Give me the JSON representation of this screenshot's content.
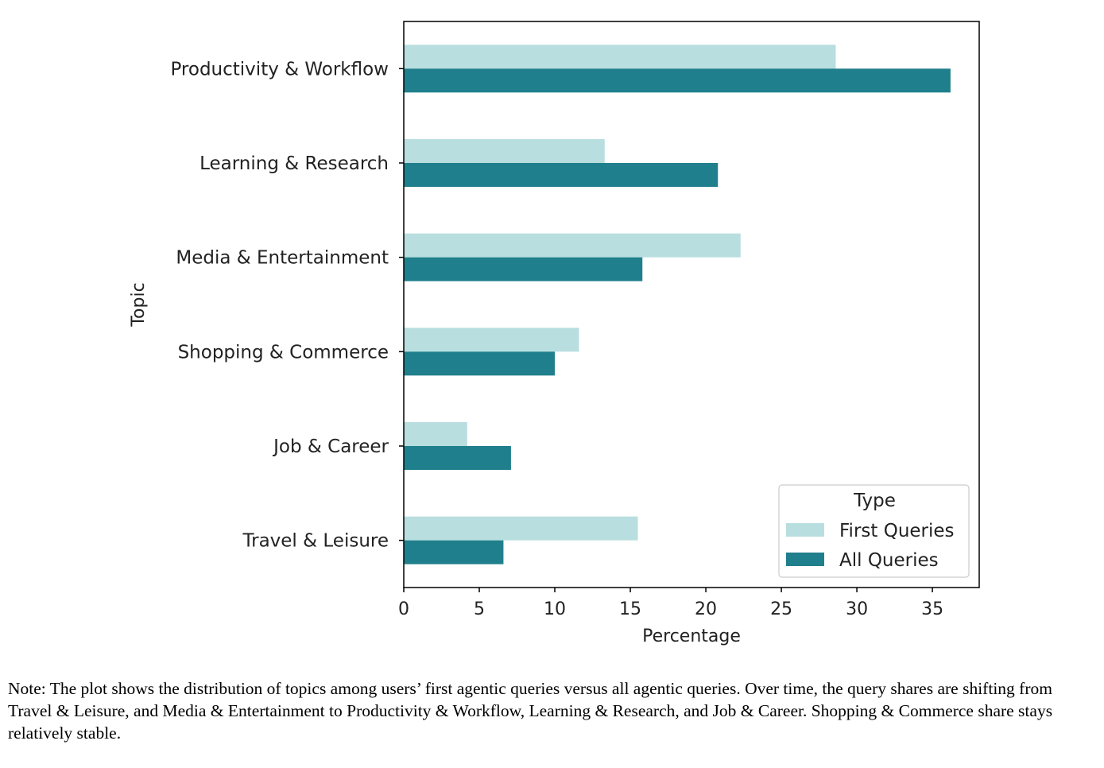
{
  "chart_data": {
    "type": "bar",
    "orientation": "horizontal",
    "categories": [
      "Productivity & Workflow",
      "Learning & Research",
      "Media & Entertainment",
      "Shopping & Commerce",
      "Job & Career",
      "Travel & Leisure"
    ],
    "series": [
      {
        "name": "First Queries",
        "color": "#b8dedf",
        "values": [
          28.6,
          13.3,
          22.3,
          11.6,
          4.2,
          15.5
        ]
      },
      {
        "name": "All Queries",
        "color": "#207f8c",
        "values": [
          36.2,
          20.8,
          15.8,
          10.0,
          7.1,
          6.6
        ]
      }
    ],
    "xlabel": "Percentage",
    "ylabel": "Topic",
    "xlim": [
      0,
      38.1
    ],
    "xticks": [
      0,
      5,
      10,
      15,
      20,
      25,
      30,
      35
    ],
    "legend": {
      "title": "Type",
      "position": "lower-right"
    },
    "grid": false
  },
  "note": "Note: The plot shows the distribution of topics among users’ first agentic queries versus all agentic queries. Over time, the query shares are shifting from Travel & Leisure, and Media & Entertainment to Productivity & Workflow, Learning & Research, and Job & Career. Shopping & Commerce share stays relatively stable."
}
